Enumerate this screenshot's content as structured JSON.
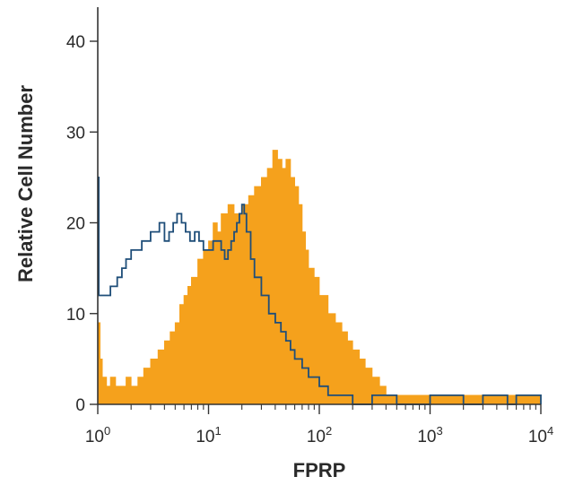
{
  "chart_data": {
    "type": "area",
    "xlabel": "FPRP",
    "ylabel": "Relative Cell Number",
    "x_scale": "log",
    "xlim": [
      1,
      10000
    ],
    "ylim": [
      0,
      40
    ],
    "x_ticks": [
      {
        "value": 1,
        "base": "10",
        "exp": "0"
      },
      {
        "value": 10,
        "base": "10",
        "exp": "1"
      },
      {
        "value": 100,
        "base": "10",
        "exp": "2"
      },
      {
        "value": 1000,
        "base": "10",
        "exp": "3"
      },
      {
        "value": 10000,
        "base": "10",
        "exp": "4"
      }
    ],
    "y_ticks": [
      {
        "value": 0,
        "label": "0"
      },
      {
        "value": 10,
        "label": "10"
      },
      {
        "value": 20,
        "label": "20"
      },
      {
        "value": 30,
        "label": "30"
      },
      {
        "value": 40,
        "label": "40"
      }
    ],
    "grid": false,
    "legend": "none",
    "series": [
      {
        "style": "filled",
        "color": "#f5a11c",
        "points": [
          [
            1.0,
            9
          ],
          [
            1.05,
            5
          ],
          [
            1.1,
            3
          ],
          [
            1.2,
            2
          ],
          [
            1.3,
            3
          ],
          [
            1.45,
            2
          ],
          [
            1.6,
            2
          ],
          [
            1.8,
            3
          ],
          [
            2.0,
            2
          ],
          [
            2.3,
            3
          ],
          [
            2.6,
            4
          ],
          [
            3.0,
            5
          ],
          [
            3.5,
            6
          ],
          [
            4.0,
            7
          ],
          [
            4.5,
            8
          ],
          [
            5.0,
            9
          ],
          [
            5.5,
            11
          ],
          [
            6.0,
            12
          ],
          [
            6.5,
            13
          ],
          [
            7.0,
            14
          ],
          [
            8.0,
            16
          ],
          [
            9.0,
            17
          ],
          [
            10.0,
            18
          ],
          [
            11.0,
            20
          ],
          [
            12.0,
            19
          ],
          [
            13.0,
            21
          ],
          [
            15.0,
            22
          ],
          [
            17.0,
            21
          ],
          [
            20.0,
            22
          ],
          [
            23.0,
            23
          ],
          [
            26.0,
            24
          ],
          [
            30.0,
            25
          ],
          [
            34.0,
            26
          ],
          [
            38.0,
            28
          ],
          [
            42.0,
            27
          ],
          [
            46.0,
            26
          ],
          [
            50.0,
            27
          ],
          [
            55.0,
            25
          ],
          [
            60.0,
            24
          ],
          [
            65.0,
            22
          ],
          [
            70.0,
            19
          ],
          [
            75.0,
            17
          ],
          [
            80.0,
            15
          ],
          [
            90.0,
            14
          ],
          [
            100.0,
            12
          ],
          [
            120.0,
            10
          ],
          [
            140.0,
            9
          ],
          [
            160.0,
            8
          ],
          [
            180.0,
            7
          ],
          [
            200.0,
            6
          ],
          [
            230.0,
            5
          ],
          [
            260.0,
            4
          ],
          [
            300.0,
            3
          ],
          [
            350.0,
            2
          ],
          [
            400.0,
            1
          ],
          [
            500.0,
            1
          ],
          [
            700.0,
            1
          ],
          [
            1000.0,
            1
          ],
          [
            1500.0,
            1
          ],
          [
            2000.0,
            1
          ],
          [
            3000.0,
            1
          ],
          [
            5000.0,
            1
          ],
          [
            7000.0,
            1
          ],
          [
            10000.0,
            1
          ]
        ]
      },
      {
        "style": "outline",
        "color": "#1f4e79",
        "points": [
          [
            1.0,
            25
          ],
          [
            1.02,
            12
          ],
          [
            1.1,
            12
          ],
          [
            1.2,
            12
          ],
          [
            1.3,
            13
          ],
          [
            1.4,
            13
          ],
          [
            1.5,
            14
          ],
          [
            1.65,
            15
          ],
          [
            1.8,
            16
          ],
          [
            2.0,
            17
          ],
          [
            2.2,
            17
          ],
          [
            2.5,
            18
          ],
          [
            2.8,
            18
          ],
          [
            3.0,
            19
          ],
          [
            3.3,
            19
          ],
          [
            3.6,
            20
          ],
          [
            4.0,
            18
          ],
          [
            4.4,
            19
          ],
          [
            4.8,
            20
          ],
          [
            5.2,
            21
          ],
          [
            5.7,
            20
          ],
          [
            6.2,
            19
          ],
          [
            6.8,
            18
          ],
          [
            7.5,
            19
          ],
          [
            8.2,
            18
          ],
          [
            9.0,
            17
          ],
          [
            10.0,
            17
          ],
          [
            11.0,
            18
          ],
          [
            12.0,
            18
          ],
          [
            13.0,
            17
          ],
          [
            14.0,
            16
          ],
          [
            15.0,
            17
          ],
          [
            16.0,
            18
          ],
          [
            17.0,
            19
          ],
          [
            18.0,
            20
          ],
          [
            19.0,
            21
          ],
          [
            20.0,
            22
          ],
          [
            21.0,
            21
          ],
          [
            22.0,
            19
          ],
          [
            24.0,
            16
          ],
          [
            26.0,
            14
          ],
          [
            30.0,
            12
          ],
          [
            35.0,
            10
          ],
          [
            40.0,
            9
          ],
          [
            45.0,
            8
          ],
          [
            50.0,
            7
          ],
          [
            55.0,
            6
          ],
          [
            60.0,
            5
          ],
          [
            70.0,
            4
          ],
          [
            80.0,
            3
          ],
          [
            100.0,
            2
          ],
          [
            120.0,
            1
          ],
          [
            150.0,
            1
          ],
          [
            200.0,
            0
          ],
          [
            300.0,
            1
          ],
          [
            500.0,
            0
          ],
          [
            800.0,
            0
          ],
          [
            1000.0,
            1
          ],
          [
            2000.0,
            0
          ],
          [
            3000.0,
            1
          ],
          [
            5000.0,
            0
          ],
          [
            6000.0,
            1
          ],
          [
            10000.0,
            0
          ]
        ]
      }
    ]
  }
}
